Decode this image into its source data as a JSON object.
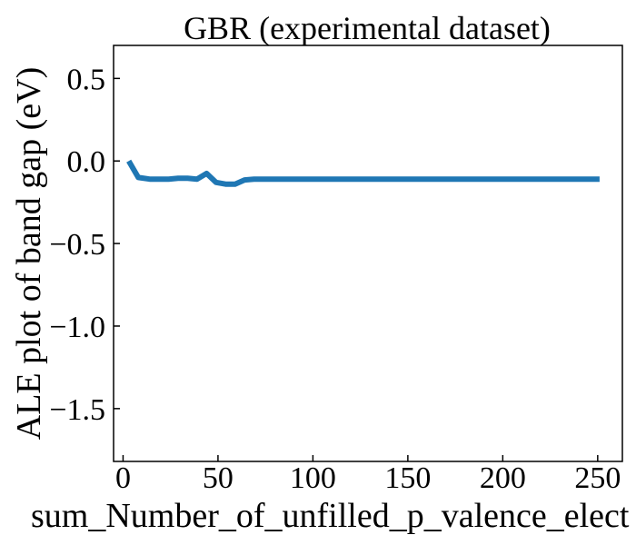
{
  "chart_data": {
    "type": "line",
    "title": "GBR (experimental dataset)",
    "xlabel": "sum_Number_of_unfilled_p_valence_elect",
    "ylabel": "ALE plot of band gap (eV)",
    "xlim": [
      -5,
      263
    ],
    "ylim": [
      -1.82,
      0.7
    ],
    "xticks": [
      0,
      50,
      100,
      150,
      200,
      250
    ],
    "yticks": [
      0.5,
      0.0,
      -0.5,
      -1.0,
      -1.5
    ],
    "xtick_labels": [
      "0",
      "50",
      "100",
      "150",
      "200",
      "250"
    ],
    "ytick_labels": [
      "0.5",
      "0.0",
      "−0.5",
      "−1.0",
      "−1.5"
    ],
    "grid": false,
    "series": [
      {
        "color": "#1f77b4",
        "x": [
          3,
          8,
          14,
          19,
          24,
          29,
          34,
          39,
          44,
          49,
          54,
          59,
          64,
          69,
          74,
          80,
          100,
          150,
          200,
          251
        ],
        "y": [
          0.0,
          -0.1,
          -0.11,
          -0.11,
          -0.11,
          -0.105,
          -0.105,
          -0.11,
          -0.075,
          -0.13,
          -0.14,
          -0.14,
          -0.115,
          -0.11,
          -0.11,
          -0.11,
          -0.11,
          -0.11,
          -0.11,
          -0.11
        ]
      }
    ]
  }
}
